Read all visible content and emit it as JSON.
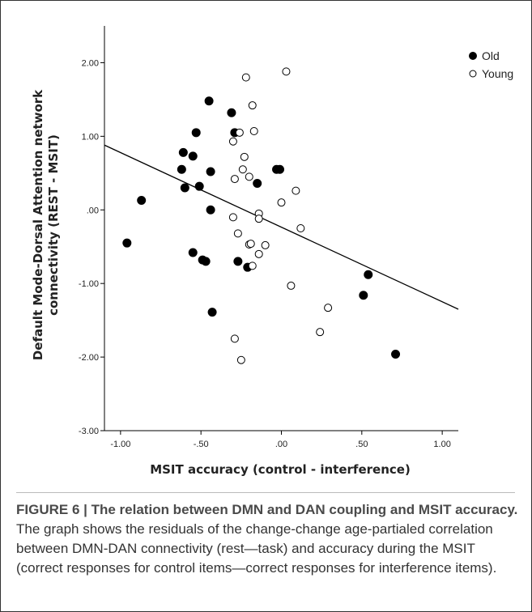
{
  "chart_data": {
    "type": "scatter",
    "xlabel": "MSIT accuracy (control - interference)",
    "ylabel_line1": "Default Mode-Dorsal Attention network",
    "ylabel_line2": "connectivity (REST - MSIT)",
    "xlim": [
      -1.1,
      1.1
    ],
    "ylim": [
      -3.0,
      2.5
    ],
    "x_ticks": [
      -1.0,
      -0.5,
      0.0,
      0.5,
      1.0
    ],
    "x_tick_labels": [
      "-1.00",
      "-.50",
      ".00",
      ".50",
      "1.00"
    ],
    "y_ticks": [
      -3.0,
      -2.0,
      -1.0,
      0.0,
      1.0,
      2.0
    ],
    "y_tick_labels": [
      "-3.00",
      "-2.00",
      "-1.00",
      ".00",
      "1.00",
      "2.00"
    ],
    "legend_position": "top-right",
    "fit_line": {
      "x": [
        -1.1,
        1.1
      ],
      "y": [
        0.88,
        -1.35
      ]
    },
    "series": [
      {
        "name": "Old",
        "marker": "filled",
        "color": "#000000",
        "points": [
          [
            -0.96,
            -0.45
          ],
          [
            -0.87,
            0.13
          ],
          [
            -0.62,
            0.55
          ],
          [
            -0.61,
            0.78
          ],
          [
            -0.6,
            0.3
          ],
          [
            -0.55,
            0.73
          ],
          [
            -0.53,
            1.05
          ],
          [
            -0.51,
            0.32
          ],
          [
            -0.55,
            -0.58
          ],
          [
            -0.49,
            -0.68
          ],
          [
            -0.47,
            -0.7
          ],
          [
            -0.45,
            1.48
          ],
          [
            -0.44,
            0.52
          ],
          [
            -0.44,
            0.0
          ],
          [
            -0.43,
            -1.39
          ],
          [
            -0.31,
            1.32
          ],
          [
            -0.29,
            1.05
          ],
          [
            -0.27,
            -0.7
          ],
          [
            -0.21,
            -0.78
          ],
          [
            -0.15,
            0.36
          ],
          [
            -0.03,
            0.55
          ],
          [
            -0.01,
            0.55
          ],
          [
            0.51,
            -1.16
          ],
          [
            0.54,
            -0.88
          ],
          [
            0.71,
            -1.96
          ]
        ]
      },
      {
        "name": "Young",
        "marker": "open",
        "color": "#000000",
        "points": [
          [
            -0.3,
            0.93
          ],
          [
            -0.29,
            0.42
          ],
          [
            -0.3,
            -0.1
          ],
          [
            -0.29,
            -1.75
          ],
          [
            -0.27,
            -0.32
          ],
          [
            -0.26,
            1.05
          ],
          [
            -0.25,
            -2.04
          ],
          [
            -0.24,
            0.55
          ],
          [
            -0.23,
            0.72
          ],
          [
            -0.22,
            1.8
          ],
          [
            -0.2,
            0.45
          ],
          [
            -0.2,
            -0.47
          ],
          [
            -0.19,
            -0.46
          ],
          [
            -0.18,
            1.42
          ],
          [
            -0.18,
            -0.76
          ],
          [
            -0.17,
            1.07
          ],
          [
            -0.14,
            -0.6
          ],
          [
            -0.14,
            -0.05
          ],
          [
            -0.14,
            -0.12
          ],
          [
            -0.1,
            -0.48
          ],
          [
            0.0,
            0.1
          ],
          [
            0.03,
            1.88
          ],
          [
            0.06,
            -1.03
          ],
          [
            0.09,
            0.26
          ],
          [
            0.12,
            -0.25
          ],
          [
            0.24,
            -1.66
          ],
          [
            0.29,
            -1.33
          ]
        ]
      }
    ]
  },
  "caption": {
    "figure_label": "FIGURE 6 |",
    "lead": " The relation between DMN and DAN coupling and MSIT accuracy.",
    "body": " The graph shows the residuals of the change-change age-partialed correlation between DMN-DAN connectivity (rest—task) and accuracy during the MSIT (correct responses for control items—correct responses for interference items)."
  }
}
